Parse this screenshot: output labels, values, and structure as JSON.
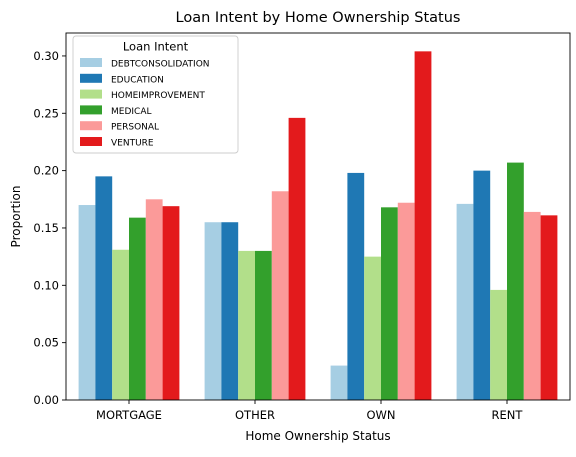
{
  "chart_data": {
    "type": "bar",
    "title": "Loan Intent by Home Ownership Status",
    "xlabel": "Home Ownership Status",
    "ylabel": "Proportion",
    "ylim": [
      0,
      0.32
    ],
    "yticks": [
      "0.00",
      "0.05",
      "0.10",
      "0.15",
      "0.20",
      "0.25",
      "0.30"
    ],
    "grid": false,
    "categories": [
      "MORTGAGE",
      "OTHER",
      "OWN",
      "RENT"
    ],
    "legend": {
      "title": "Loan Intent",
      "placement": "upper-left"
    },
    "series": [
      {
        "name": "DEBTCONSOLIDATION",
        "color": "#a6cee3",
        "values": [
          0.17,
          0.155,
          0.03,
          0.171
        ]
      },
      {
        "name": "EDUCATION",
        "color": "#1f78b4",
        "values": [
          0.195,
          0.155,
          0.198,
          0.2
        ]
      },
      {
        "name": "HOMEIMPROVEMENT",
        "color": "#b2df8a",
        "values": [
          0.131,
          0.13,
          0.125,
          0.096
        ]
      },
      {
        "name": "MEDICAL",
        "color": "#33a02c",
        "values": [
          0.159,
          0.13,
          0.168,
          0.207
        ]
      },
      {
        "name": "PERSONAL",
        "color": "#fb9a99",
        "values": [
          0.175,
          0.182,
          0.172,
          0.164
        ]
      },
      {
        "name": "VENTURE",
        "color": "#e31a1c",
        "values": [
          0.169,
          0.246,
          0.304,
          0.161
        ]
      }
    ]
  }
}
